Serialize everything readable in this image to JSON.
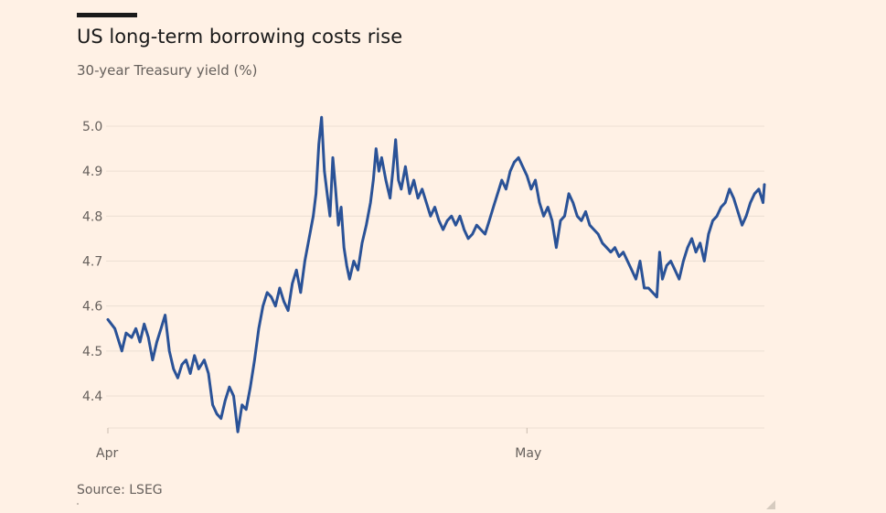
{
  "header": {
    "title": "US long-term borrowing costs rise",
    "subtitle": "30-year Treasury yield (%)"
  },
  "footer": {
    "source": "Source: LSEG"
  },
  "colors": {
    "background": "#fff1e5",
    "line": "#2a5297",
    "grid": "#ece0d4",
    "tick_text": "#66605c",
    "title_text": "#1a1a1a"
  },
  "chart_data": {
    "type": "line",
    "title": "US long-term borrowing costs rise",
    "subtitle": "30-year Treasury yield (%)",
    "xlabel": "",
    "ylabel": "",
    "ylim": [
      4.3,
      5.05
    ],
    "yticks": [
      4.4,
      4.5,
      4.6,
      4.7,
      4.8,
      4.9,
      5.0
    ],
    "ytick_labels": [
      "4.4",
      "4.5",
      "4.6",
      "4.7",
      "4.8",
      "4.9",
      "5.0"
    ],
    "xticks": [
      {
        "label": "Apr",
        "x": 0
      },
      {
        "label": "May",
        "x": 30
      }
    ],
    "xlim": [
      0,
      47
    ],
    "x_unit": "days since 1 Apr",
    "grid": "horizontal",
    "legend": "none",
    "series": [
      {
        "name": "",
        "points": [
          [
            0.0,
            4.57
          ],
          [
            0.5,
            4.55
          ],
          [
            0.8,
            4.52
          ],
          [
            1.0,
            4.5
          ],
          [
            1.3,
            4.54
          ],
          [
            1.7,
            4.53
          ],
          [
            2.0,
            4.55
          ],
          [
            2.3,
            4.52
          ],
          [
            2.6,
            4.56
          ],
          [
            2.9,
            4.53
          ],
          [
            3.2,
            4.48
          ],
          [
            3.5,
            4.52
          ],
          [
            3.8,
            4.55
          ],
          [
            4.1,
            4.58
          ],
          [
            4.4,
            4.5
          ],
          [
            4.7,
            4.46
          ],
          [
            5.0,
            4.44
          ],
          [
            5.3,
            4.47
          ],
          [
            5.6,
            4.48
          ],
          [
            5.9,
            4.45
          ],
          [
            6.2,
            4.49
          ],
          [
            6.5,
            4.46
          ],
          [
            6.9,
            4.48
          ],
          [
            7.2,
            4.45
          ],
          [
            7.5,
            4.38
          ],
          [
            7.8,
            4.36
          ],
          [
            8.1,
            4.35
          ],
          [
            8.4,
            4.39
          ],
          [
            8.7,
            4.42
          ],
          [
            9.0,
            4.4
          ],
          [
            9.3,
            4.32
          ],
          [
            9.6,
            4.38
          ],
          [
            9.9,
            4.37
          ],
          [
            10.2,
            4.42
          ],
          [
            10.5,
            4.48
          ],
          [
            10.8,
            4.55
          ],
          [
            11.1,
            4.6
          ],
          [
            11.4,
            4.63
          ],
          [
            11.7,
            4.62
          ],
          [
            12.0,
            4.6
          ],
          [
            12.3,
            4.64
          ],
          [
            12.6,
            4.61
          ],
          [
            12.9,
            4.59
          ],
          [
            13.2,
            4.65
          ],
          [
            13.5,
            4.68
          ],
          [
            13.8,
            4.63
          ],
          [
            14.1,
            4.7
          ],
          [
            14.4,
            4.75
          ],
          [
            14.7,
            4.8
          ],
          [
            14.9,
            4.85
          ],
          [
            15.1,
            4.96
          ],
          [
            15.3,
            5.02
          ],
          [
            15.5,
            4.9
          ],
          [
            15.7,
            4.85
          ],
          [
            15.9,
            4.8
          ],
          [
            16.1,
            4.93
          ],
          [
            16.3,
            4.86
          ],
          [
            16.5,
            4.78
          ],
          [
            16.7,
            4.82
          ],
          [
            16.9,
            4.73
          ],
          [
            17.1,
            4.69
          ],
          [
            17.3,
            4.66
          ],
          [
            17.6,
            4.7
          ],
          [
            17.9,
            4.68
          ],
          [
            18.2,
            4.74
          ],
          [
            18.5,
            4.78
          ],
          [
            18.8,
            4.83
          ],
          [
            19.0,
            4.88
          ],
          [
            19.2,
            4.95
          ],
          [
            19.4,
            4.9
          ],
          [
            19.6,
            4.93
          ],
          [
            19.9,
            4.88
          ],
          [
            20.2,
            4.84
          ],
          [
            20.4,
            4.9
          ],
          [
            20.6,
            4.97
          ],
          [
            20.8,
            4.88
          ],
          [
            21.0,
            4.86
          ],
          [
            21.3,
            4.91
          ],
          [
            21.6,
            4.85
          ],
          [
            21.9,
            4.88
          ],
          [
            22.2,
            4.84
          ],
          [
            22.5,
            4.86
          ],
          [
            22.8,
            4.83
          ],
          [
            23.1,
            4.8
          ],
          [
            23.4,
            4.82
          ],
          [
            23.7,
            4.79
          ],
          [
            24.0,
            4.77
          ],
          [
            24.3,
            4.79
          ],
          [
            24.6,
            4.8
          ],
          [
            24.9,
            4.78
          ],
          [
            25.2,
            4.8
          ],
          [
            25.5,
            4.77
          ],
          [
            25.8,
            4.75
          ],
          [
            26.1,
            4.76
          ],
          [
            26.4,
            4.78
          ],
          [
            26.7,
            4.77
          ],
          [
            27.0,
            4.76
          ],
          [
            27.3,
            4.79
          ],
          [
            27.6,
            4.82
          ],
          [
            27.9,
            4.85
          ],
          [
            28.2,
            4.88
          ],
          [
            28.5,
            4.86
          ],
          [
            28.8,
            4.9
          ],
          [
            29.1,
            4.92
          ],
          [
            29.4,
            4.93
          ],
          [
            29.7,
            4.91
          ],
          [
            30.0,
            4.89
          ],
          [
            30.3,
            4.86
          ],
          [
            30.6,
            4.88
          ],
          [
            30.9,
            4.83
          ],
          [
            31.2,
            4.8
          ],
          [
            31.5,
            4.82
          ],
          [
            31.8,
            4.79
          ],
          [
            32.1,
            4.73
          ],
          [
            32.4,
            4.79
          ],
          [
            32.7,
            4.8
          ],
          [
            33.0,
            4.85
          ],
          [
            33.3,
            4.83
          ],
          [
            33.6,
            4.8
          ],
          [
            33.9,
            4.79
          ],
          [
            34.2,
            4.81
          ],
          [
            34.5,
            4.78
          ],
          [
            34.8,
            4.77
          ],
          [
            35.1,
            4.76
          ],
          [
            35.4,
            4.74
          ],
          [
            35.7,
            4.73
          ],
          [
            36.0,
            4.72
          ],
          [
            36.3,
            4.73
          ],
          [
            36.6,
            4.71
          ],
          [
            36.9,
            4.72
          ],
          [
            37.2,
            4.7
          ],
          [
            37.5,
            4.68
          ],
          [
            37.8,
            4.66
          ],
          [
            38.1,
            4.7
          ],
          [
            38.4,
            4.64
          ],
          [
            38.7,
            4.64
          ],
          [
            39.0,
            4.63
          ],
          [
            39.3,
            4.62
          ],
          [
            39.5,
            4.72
          ],
          [
            39.7,
            4.66
          ],
          [
            40.0,
            4.69
          ],
          [
            40.3,
            4.7
          ],
          [
            40.6,
            4.68
          ],
          [
            40.9,
            4.66
          ],
          [
            41.2,
            4.7
          ],
          [
            41.5,
            4.73
          ],
          [
            41.8,
            4.75
          ],
          [
            42.1,
            4.72
          ],
          [
            42.4,
            4.74
          ],
          [
            42.7,
            4.7
          ],
          [
            43.0,
            4.76
          ],
          [
            43.3,
            4.79
          ],
          [
            43.6,
            4.8
          ],
          [
            43.9,
            4.82
          ],
          [
            44.2,
            4.83
          ],
          [
            44.5,
            4.86
          ],
          [
            44.8,
            4.84
          ],
          [
            45.1,
            4.81
          ],
          [
            45.4,
            4.78
          ],
          [
            45.7,
            4.8
          ],
          [
            46.0,
            4.83
          ],
          [
            46.3,
            4.85
          ],
          [
            46.6,
            4.86
          ],
          [
            46.9,
            4.83
          ],
          [
            47.0,
            4.87
          ]
        ]
      }
    ]
  }
}
